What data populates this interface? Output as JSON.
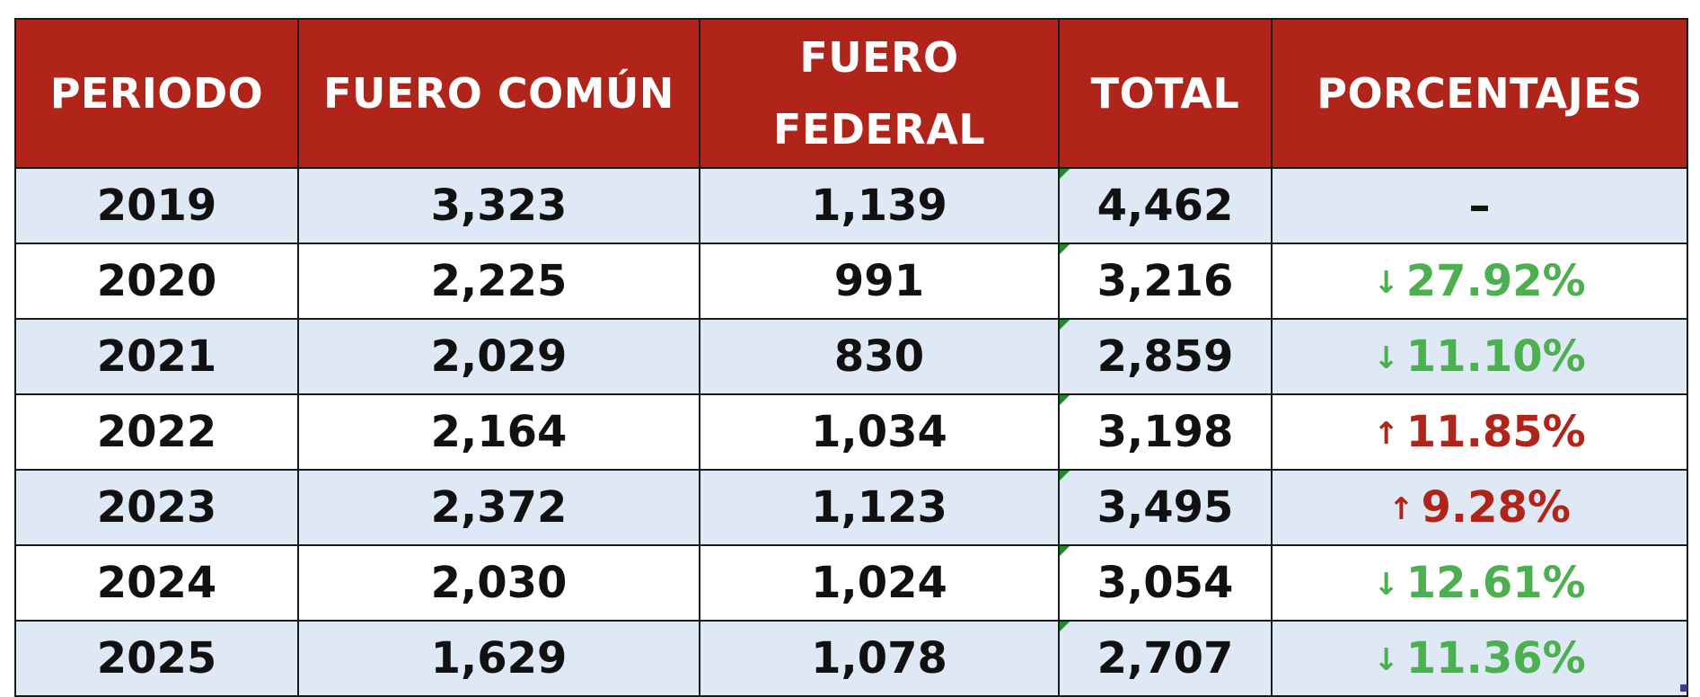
{
  "colors": {
    "header_bg": "#b0241a",
    "row_shade": "#dfe9f6",
    "down": "#4caf50",
    "up": "#b0241a"
  },
  "headers": {
    "periodo": "PERIODO",
    "fuero_comun": "FUERO COMÚN",
    "fuero_federal_line1": "FUERO",
    "fuero_federal_line2": "FEDERAL",
    "total": "TOTAL",
    "porcentajes": "PORCENTAJES"
  },
  "rows": [
    {
      "periodo": "2019",
      "fuero_comun": "3,323",
      "fuero_federal": "1,139",
      "total": "4,462",
      "direction": "none",
      "arrow": "",
      "pct": "–"
    },
    {
      "periodo": "2020",
      "fuero_comun": "2,225",
      "fuero_federal": "991",
      "total": "3,216",
      "direction": "down",
      "arrow": "↓",
      "pct": "27.92%"
    },
    {
      "periodo": "2021",
      "fuero_comun": "2,029",
      "fuero_federal": "830",
      "total": "2,859",
      "direction": "down",
      "arrow": "↓",
      "pct": "11.10%"
    },
    {
      "periodo": "2022",
      "fuero_comun": "2,164",
      "fuero_federal": "1,034",
      "total": "3,198",
      "direction": "up",
      "arrow": "↑",
      "pct": "11.85%"
    },
    {
      "periodo": "2023",
      "fuero_comun": "2,372",
      "fuero_federal": "1,123",
      "total": "3,495",
      "direction": "up",
      "arrow": "↑",
      "pct": "9.28%"
    },
    {
      "periodo": "2024",
      "fuero_comun": "2,030",
      "fuero_federal": "1,024",
      "total": "3,054",
      "direction": "down",
      "arrow": "↓",
      "pct": "12.61%"
    },
    {
      "periodo": "2025",
      "fuero_comun": "1,629",
      "fuero_federal": "1,078",
      "total": "2,707",
      "direction": "down",
      "arrow": "↓",
      "pct": "11.36%"
    }
  ]
}
